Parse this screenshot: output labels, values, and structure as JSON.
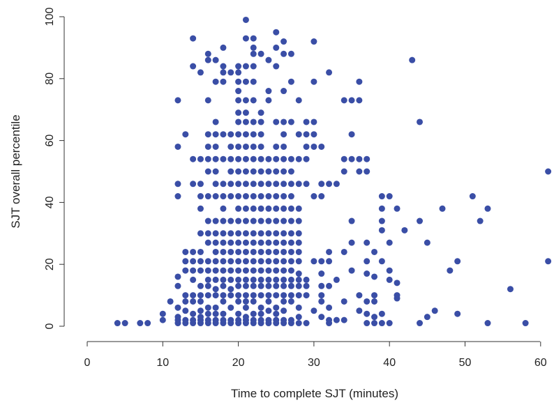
{
  "chart_data": {
    "type": "scatter",
    "title": "",
    "xlabel": "Time to complete SJT (minutes)",
    "ylabel": "SJT overall percentile",
    "xlim": [
      0,
      61
    ],
    "ylim": [
      0,
      100
    ],
    "xticks": [
      0,
      10,
      20,
      30,
      40,
      50,
      60
    ],
    "yticks": [
      0,
      20,
      40,
      60,
      80,
      100
    ],
    "grid": false,
    "legend": "none",
    "marker_color": "#3a4ea6",
    "points": [
      [
        4,
        1
      ],
      [
        5,
        1
      ],
      [
        7,
        1
      ],
      [
        8,
        1
      ],
      [
        10,
        2
      ],
      [
        10,
        4
      ],
      [
        11,
        8
      ],
      [
        12,
        1
      ],
      [
        12,
        2
      ],
      [
        12,
        3
      ],
      [
        12,
        6
      ],
      [
        12,
        13
      ],
      [
        12,
        16
      ],
      [
        12,
        42
      ],
      [
        12,
        46
      ],
      [
        12,
        58
      ],
      [
        12,
        73
      ],
      [
        13,
        1
      ],
      [
        13,
        2
      ],
      [
        13,
        5
      ],
      [
        13,
        8
      ],
      [
        13,
        10
      ],
      [
        13,
        18
      ],
      [
        13,
        21
      ],
      [
        13,
        24
      ],
      [
        13,
        62
      ],
      [
        14,
        1
      ],
      [
        14,
        2
      ],
      [
        14,
        4
      ],
      [
        14,
        8
      ],
      [
        14,
        10
      ],
      [
        14,
        15
      ],
      [
        14,
        18
      ],
      [
        14,
        21
      ],
      [
        14,
        24
      ],
      [
        14,
        46
      ],
      [
        14,
        54
      ],
      [
        14,
        84
      ],
      [
        14,
        93
      ],
      [
        15,
        1
      ],
      [
        15,
        2
      ],
      [
        15,
        3
      ],
      [
        15,
        5
      ],
      [
        15,
        8
      ],
      [
        15,
        10
      ],
      [
        15,
        13
      ],
      [
        15,
        18
      ],
      [
        15,
        21
      ],
      [
        15,
        24
      ],
      [
        15,
        30
      ],
      [
        15,
        38
      ],
      [
        15,
        42
      ],
      [
        15,
        46
      ],
      [
        15,
        54
      ],
      [
        15,
        82
      ],
      [
        16,
        1
      ],
      [
        16,
        2
      ],
      [
        16,
        4
      ],
      [
        16,
        6
      ],
      [
        16,
        10
      ],
      [
        16,
        13
      ],
      [
        16,
        15
      ],
      [
        16,
        18
      ],
      [
        16,
        21
      ],
      [
        16,
        27
      ],
      [
        16,
        30
      ],
      [
        16,
        34
      ],
      [
        16,
        42
      ],
      [
        16,
        50
      ],
      [
        16,
        54
      ],
      [
        16,
        58
      ],
      [
        16,
        62
      ],
      [
        16,
        73
      ],
      [
        16,
        86
      ],
      [
        16,
        88
      ],
      [
        17,
        1
      ],
      [
        17,
        2
      ],
      [
        17,
        4
      ],
      [
        17,
        6
      ],
      [
        17,
        10
      ],
      [
        17,
        12
      ],
      [
        17,
        15
      ],
      [
        17,
        18
      ],
      [
        17,
        21
      ],
      [
        17,
        24
      ],
      [
        17,
        27
      ],
      [
        17,
        30
      ],
      [
        17,
        34
      ],
      [
        17,
        42
      ],
      [
        17,
        46
      ],
      [
        17,
        50
      ],
      [
        17,
        54
      ],
      [
        17,
        58
      ],
      [
        17,
        62
      ],
      [
        17,
        66
      ],
      [
        17,
        79
      ],
      [
        17,
        86
      ],
      [
        18,
        1
      ],
      [
        18,
        2
      ],
      [
        18,
        4
      ],
      [
        18,
        8
      ],
      [
        18,
        10
      ],
      [
        18,
        13
      ],
      [
        18,
        15
      ],
      [
        18,
        18
      ],
      [
        18,
        21
      ],
      [
        18,
        24
      ],
      [
        18,
        27
      ],
      [
        18,
        30
      ],
      [
        18,
        34
      ],
      [
        18,
        38
      ],
      [
        18,
        42
      ],
      [
        18,
        46
      ],
      [
        18,
        54
      ],
      [
        18,
        62
      ],
      [
        18,
        79
      ],
      [
        18,
        82
      ],
      [
        18,
        84
      ],
      [
        18,
        90
      ],
      [
        19,
        1
      ],
      [
        19,
        2
      ],
      [
        19,
        6
      ],
      [
        19,
        10
      ],
      [
        19,
        12
      ],
      [
        19,
        15
      ],
      [
        19,
        18
      ],
      [
        19,
        21
      ],
      [
        19,
        24
      ],
      [
        19,
        27
      ],
      [
        19,
        30
      ],
      [
        19,
        34
      ],
      [
        19,
        42
      ],
      [
        19,
        46
      ],
      [
        19,
        50
      ],
      [
        19,
        54
      ],
      [
        19,
        58
      ],
      [
        19,
        62
      ],
      [
        19,
        82
      ],
      [
        20,
        1
      ],
      [
        20,
        2
      ],
      [
        20,
        4
      ],
      [
        20,
        8
      ],
      [
        20,
        10
      ],
      [
        20,
        13
      ],
      [
        20,
        15
      ],
      [
        20,
        18
      ],
      [
        20,
        21
      ],
      [
        20,
        24
      ],
      [
        20,
        27
      ],
      [
        20,
        30
      ],
      [
        20,
        34
      ],
      [
        20,
        38
      ],
      [
        20,
        42
      ],
      [
        20,
        46
      ],
      [
        20,
        50
      ],
      [
        20,
        54
      ],
      [
        20,
        58
      ],
      [
        20,
        62
      ],
      [
        20,
        66
      ],
      [
        20,
        69
      ],
      [
        20,
        73
      ],
      [
        20,
        76
      ],
      [
        20,
        79
      ],
      [
        20,
        82
      ],
      [
        20,
        84
      ],
      [
        21,
        1
      ],
      [
        21,
        2
      ],
      [
        21,
        3
      ],
      [
        21,
        6
      ],
      [
        21,
        8
      ],
      [
        21,
        10
      ],
      [
        21,
        13
      ],
      [
        21,
        15
      ],
      [
        21,
        18
      ],
      [
        21,
        21
      ],
      [
        21,
        24
      ],
      [
        21,
        27
      ],
      [
        21,
        30
      ],
      [
        21,
        34
      ],
      [
        21,
        38
      ],
      [
        21,
        42
      ],
      [
        21,
        46
      ],
      [
        21,
        50
      ],
      [
        21,
        54
      ],
      [
        21,
        58
      ],
      [
        21,
        62
      ],
      [
        21,
        66
      ],
      [
        21,
        69
      ],
      [
        21,
        73
      ],
      [
        21,
        79
      ],
      [
        21,
        84
      ],
      [
        21,
        93
      ],
      [
        21,
        99
      ],
      [
        22,
        1
      ],
      [
        22,
        2
      ],
      [
        22,
        4
      ],
      [
        22,
        8
      ],
      [
        22,
        10
      ],
      [
        22,
        13
      ],
      [
        22,
        15
      ],
      [
        22,
        18
      ],
      [
        22,
        21
      ],
      [
        22,
        24
      ],
      [
        22,
        27
      ],
      [
        22,
        30
      ],
      [
        22,
        34
      ],
      [
        22,
        38
      ],
      [
        22,
        42
      ],
      [
        22,
        46
      ],
      [
        22,
        50
      ],
      [
        22,
        54
      ],
      [
        22,
        58
      ],
      [
        22,
        62
      ],
      [
        22,
        66
      ],
      [
        22,
        73
      ],
      [
        22,
        79
      ],
      [
        22,
        84
      ],
      [
        22,
        88
      ],
      [
        22,
        90
      ],
      [
        22,
        93
      ],
      [
        23,
        1
      ],
      [
        23,
        2
      ],
      [
        23,
        4
      ],
      [
        23,
        6
      ],
      [
        23,
        10
      ],
      [
        23,
        13
      ],
      [
        23,
        15
      ],
      [
        23,
        18
      ],
      [
        23,
        21
      ],
      [
        23,
        24
      ],
      [
        23,
        27
      ],
      [
        23,
        30
      ],
      [
        23,
        34
      ],
      [
        23,
        38
      ],
      [
        23,
        42
      ],
      [
        23,
        46
      ],
      [
        23,
        50
      ],
      [
        23,
        54
      ],
      [
        23,
        58
      ],
      [
        23,
        62
      ],
      [
        23,
        66
      ],
      [
        23,
        69
      ],
      [
        23,
        88
      ],
      [
        24,
        1
      ],
      [
        24,
        2
      ],
      [
        24,
        5
      ],
      [
        24,
        8
      ],
      [
        24,
        10
      ],
      [
        24,
        13
      ],
      [
        24,
        15
      ],
      [
        24,
        18
      ],
      [
        24,
        21
      ],
      [
        24,
        24
      ],
      [
        24,
        27
      ],
      [
        24,
        30
      ],
      [
        24,
        34
      ],
      [
        24,
        38
      ],
      [
        24,
        42
      ],
      [
        24,
        46
      ],
      [
        24,
        50
      ],
      [
        24,
        54
      ],
      [
        24,
        73
      ],
      [
        24,
        76
      ],
      [
        24,
        86
      ],
      [
        25,
        1
      ],
      [
        25,
        2
      ],
      [
        25,
        4
      ],
      [
        25,
        6
      ],
      [
        25,
        10
      ],
      [
        25,
        13
      ],
      [
        25,
        15
      ],
      [
        25,
        18
      ],
      [
        25,
        21
      ],
      [
        25,
        24
      ],
      [
        25,
        27
      ],
      [
        25,
        30
      ],
      [
        25,
        34
      ],
      [
        25,
        38
      ],
      [
        25,
        42
      ],
      [
        25,
        46
      ],
      [
        25,
        50
      ],
      [
        25,
        54
      ],
      [
        25,
        58
      ],
      [
        25,
        66
      ],
      [
        25,
        84
      ],
      [
        25,
        90
      ],
      [
        25,
        95
      ],
      [
        26,
        1
      ],
      [
        26,
        2
      ],
      [
        26,
        5
      ],
      [
        26,
        8
      ],
      [
        26,
        10
      ],
      [
        26,
        13
      ],
      [
        26,
        15
      ],
      [
        26,
        18
      ],
      [
        26,
        21
      ],
      [
        26,
        24
      ],
      [
        26,
        27
      ],
      [
        26,
        30
      ],
      [
        26,
        34
      ],
      [
        26,
        38
      ],
      [
        26,
        42
      ],
      [
        26,
        46
      ],
      [
        26,
        50
      ],
      [
        26,
        54
      ],
      [
        26,
        58
      ],
      [
        26,
        62
      ],
      [
        26,
        66
      ],
      [
        26,
        76
      ],
      [
        26,
        88
      ],
      [
        26,
        92
      ],
      [
        27,
        1
      ],
      [
        27,
        2
      ],
      [
        27,
        8
      ],
      [
        27,
        10
      ],
      [
        27,
        13
      ],
      [
        27,
        15
      ],
      [
        27,
        18
      ],
      [
        27,
        21
      ],
      [
        27,
        24
      ],
      [
        27,
        27
      ],
      [
        27,
        30
      ],
      [
        27,
        34
      ],
      [
        27,
        38
      ],
      [
        27,
        42
      ],
      [
        27,
        46
      ],
      [
        27,
        50
      ],
      [
        27,
        54
      ],
      [
        27,
        66
      ],
      [
        27,
        79
      ],
      [
        27,
        88
      ],
      [
        28,
        1
      ],
      [
        28,
        3
      ],
      [
        28,
        6
      ],
      [
        28,
        10
      ],
      [
        28,
        13
      ],
      [
        28,
        15
      ],
      [
        28,
        17
      ],
      [
        28,
        21
      ],
      [
        28,
        24
      ],
      [
        28,
        27
      ],
      [
        28,
        30
      ],
      [
        28,
        34
      ],
      [
        28,
        38
      ],
      [
        28,
        46
      ],
      [
        28,
        54
      ],
      [
        28,
        62
      ],
      [
        28,
        73
      ],
      [
        29,
        1
      ],
      [
        29,
        10
      ],
      [
        29,
        13
      ],
      [
        29,
        15
      ],
      [
        29,
        46
      ],
      [
        29,
        54
      ],
      [
        29,
        58
      ],
      [
        29,
        62
      ],
      [
        29,
        66
      ],
      [
        30,
        5
      ],
      [
        30,
        21
      ],
      [
        30,
        42
      ],
      [
        30,
        58
      ],
      [
        30,
        62
      ],
      [
        30,
        66
      ],
      [
        30,
        79
      ],
      [
        30,
        92
      ],
      [
        31,
        3
      ],
      [
        31,
        8
      ],
      [
        31,
        10
      ],
      [
        31,
        13
      ],
      [
        31,
        17
      ],
      [
        31,
        21
      ],
      [
        31,
        42
      ],
      [
        31,
        46
      ],
      [
        31,
        58
      ],
      [
        32,
        1
      ],
      [
        32,
        2
      ],
      [
        32,
        6
      ],
      [
        32,
        13
      ],
      [
        32,
        21
      ],
      [
        32,
        24
      ],
      [
        32,
        46
      ],
      [
        32,
        82
      ],
      [
        33,
        2
      ],
      [
        33,
        15
      ],
      [
        33,
        46
      ],
      [
        34,
        2
      ],
      [
        34,
        8
      ],
      [
        34,
        24
      ],
      [
        34,
        50
      ],
      [
        34,
        54
      ],
      [
        34,
        73
      ],
      [
        35,
        18
      ],
      [
        35,
        27
      ],
      [
        35,
        34
      ],
      [
        35,
        54
      ],
      [
        35,
        62
      ],
      [
        35,
        73
      ],
      [
        36,
        5
      ],
      [
        36,
        10
      ],
      [
        36,
        50
      ],
      [
        36,
        54
      ],
      [
        36,
        73
      ],
      [
        36,
        79
      ],
      [
        37,
        1
      ],
      [
        37,
        4
      ],
      [
        37,
        8
      ],
      [
        37,
        17
      ],
      [
        37,
        21
      ],
      [
        37,
        27
      ],
      [
        37,
        50
      ],
      [
        37,
        54
      ],
      [
        38,
        1
      ],
      [
        38,
        3
      ],
      [
        38,
        8
      ],
      [
        38,
        10
      ],
      [
        38,
        16
      ],
      [
        38,
        24
      ],
      [
        39,
        1
      ],
      [
        39,
        4
      ],
      [
        39,
        21
      ],
      [
        39,
        31
      ],
      [
        39,
        34
      ],
      [
        39,
        38
      ],
      [
        39,
        42
      ],
      [
        40,
        1
      ],
      [
        40,
        15
      ],
      [
        40,
        18
      ],
      [
        40,
        27
      ],
      [
        40,
        42
      ],
      [
        41,
        9
      ],
      [
        41,
        10
      ],
      [
        41,
        14
      ],
      [
        41,
        38
      ],
      [
        42,
        31
      ],
      [
        43,
        86
      ],
      [
        44,
        1
      ],
      [
        44,
        34
      ],
      [
        44,
        66
      ],
      [
        45,
        3
      ],
      [
        45,
        27
      ],
      [
        46,
        5
      ],
      [
        47,
        38
      ],
      [
        48,
        18
      ],
      [
        49,
        4
      ],
      [
        49,
        21
      ],
      [
        51,
        42
      ],
      [
        52,
        34
      ],
      [
        53,
        38
      ],
      [
        53,
        1
      ],
      [
        56,
        12
      ],
      [
        58,
        1
      ],
      [
        61,
        21
      ],
      [
        61,
        50
      ]
    ]
  }
}
